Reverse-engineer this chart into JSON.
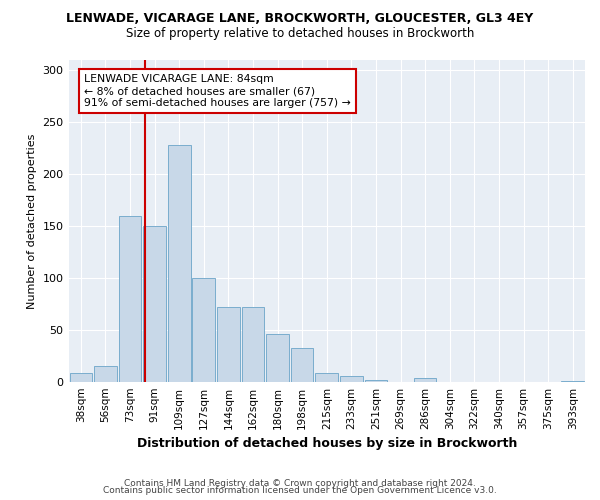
{
  "title": "LENWADE, VICARAGE LANE, BROCKWORTH, GLOUCESTER, GL3 4EY",
  "subtitle": "Size of property relative to detached houses in Brockworth",
  "xlabel": "Distribution of detached houses by size in Brockworth",
  "ylabel": "Number of detached properties",
  "categories": [
    "38sqm",
    "56sqm",
    "73sqm",
    "91sqm",
    "109sqm",
    "127sqm",
    "144sqm",
    "162sqm",
    "180sqm",
    "198sqm",
    "215sqm",
    "233sqm",
    "251sqm",
    "269sqm",
    "286sqm",
    "304sqm",
    "322sqm",
    "340sqm",
    "357sqm",
    "375sqm",
    "393sqm"
  ],
  "values": [
    8,
    15,
    160,
    150,
    228,
    100,
    72,
    72,
    46,
    32,
    8,
    5,
    2,
    0,
    4,
    0,
    0,
    0,
    0,
    0,
    1
  ],
  "bar_color": "#c8d8e8",
  "bar_edgecolor": "#7aadcd",
  "vline_color": "#cc0000",
  "annotation_text": "LENWADE VICARAGE LANE: 84sqm\n← 8% of detached houses are smaller (67)\n91% of semi-detached houses are larger (757) →",
  "annotation_box_color": "#ffffff",
  "annotation_box_edgecolor": "#cc0000",
  "footer1": "Contains HM Land Registry data © Crown copyright and database right 2024.",
  "footer2": "Contains public sector information licensed under the Open Government Licence v3.0.",
  "bg_color": "#e8eef5",
  "ylim": [
    0,
    310
  ],
  "yticks": [
    0,
    50,
    100,
    150,
    200,
    250,
    300
  ],
  "vline_pos": 2.6
}
